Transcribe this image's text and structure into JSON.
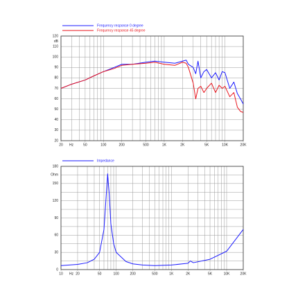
{
  "chart_data": [
    {
      "type": "line",
      "log_x": true,
      "grid": true,
      "x_unit": "Hz",
      "y_unit": "dB",
      "xlim": [
        20,
        20000
      ],
      "ylim": [
        20,
        120
      ],
      "xticks": [
        20,
        50,
        100,
        200,
        500,
        {
          "value": 1000,
          "label": "1K"
        },
        {
          "value": 2000,
          "label": "2K"
        },
        {
          "value": 5000,
          "label": "5K"
        },
        {
          "value": 10000,
          "label": "10K"
        },
        {
          "value": 20000,
          "label": "20K"
        }
      ],
      "yticks": [
        20,
        30,
        40,
        50,
        60,
        70,
        80,
        90,
        100,
        110,
        120
      ],
      "xgrid": [
        20,
        30,
        40,
        50,
        60,
        70,
        80,
        90,
        100,
        200,
        300,
        400,
        500,
        600,
        700,
        800,
        900,
        1000,
        2000,
        3000,
        4000,
        5000,
        6000,
        7000,
        8000,
        9000,
        10000,
        20000
      ],
      "x": [
        20,
        30,
        50,
        70,
        100,
        150,
        200,
        300,
        500,
        700,
        1000,
        1500,
        2000,
        2300,
        2500,
        3000,
        3300,
        3600,
        4000,
        4500,
        5000,
        6000,
        7000,
        8000,
        9000,
        10000,
        12000,
        14000,
        16000,
        18000,
        20000
      ],
      "series": [
        {
          "name": "Frequency response 0 degree",
          "color": "#1a1aff",
          "values": [
            70,
            74,
            78,
            82,
            86,
            90,
            93,
            93,
            95,
            96,
            95,
            94,
            96,
            97,
            93,
            90,
            84,
            96,
            80,
            86,
            88,
            80,
            85,
            78,
            86,
            85,
            70,
            76,
            65,
            60,
            55
          ]
        },
        {
          "name": "Frequency response 45 degree",
          "color": "#e8141c",
          "values": [
            70,
            74,
            78,
            82,
            86,
            89,
            92,
            93,
            94,
            95,
            93,
            92,
            95,
            94,
            90,
            75,
            60,
            70,
            72,
            66,
            70,
            75,
            66,
            73,
            70,
            72,
            62,
            66,
            52,
            48,
            47
          ]
        }
      ]
    },
    {
      "type": "line",
      "log_x": true,
      "grid": true,
      "x_unit": "Hz",
      "y_unit": "Ohm",
      "xlim": [
        10,
        20000
      ],
      "ylim": [
        0,
        180
      ],
      "xticks": [
        10,
        20,
        50,
        100,
        200,
        500,
        {
          "value": 1000,
          "label": "1K"
        },
        {
          "value": 2000,
          "label": "2K"
        },
        {
          "value": 5000,
          "label": "5K"
        },
        {
          "value": 10000,
          "label": "10K"
        },
        {
          "value": 20000,
          "label": "20K"
        }
      ],
      "yticks": [
        0,
        30,
        60,
        90,
        120,
        150,
        180
      ],
      "ygrid": [
        15,
        45,
        75,
        105,
        135,
        165
      ],
      "xgrid": [
        10,
        20,
        30,
        40,
        50,
        60,
        70,
        80,
        90,
        100,
        200,
        300,
        400,
        500,
        600,
        700,
        800,
        900,
        1000,
        2000,
        3000,
        4000,
        5000,
        6000,
        7000,
        8000,
        9000,
        10000,
        20000
      ],
      "x": [
        10,
        20,
        30,
        40,
        50,
        60,
        65,
        70,
        75,
        80,
        90,
        100,
        150,
        200,
        300,
        500,
        1000,
        2000,
        2200,
        2500,
        5000,
        10000,
        20000
      ],
      "series": [
        {
          "name": "Impedance",
          "color": "#1a1aff",
          "values": [
            7,
            9,
            12,
            18,
            30,
            70,
            120,
            167,
            130,
            80,
            45,
            30,
            14,
            10,
            8,
            7,
            8,
            11,
            15,
            12,
            18,
            32,
            70
          ]
        }
      ]
    }
  ]
}
